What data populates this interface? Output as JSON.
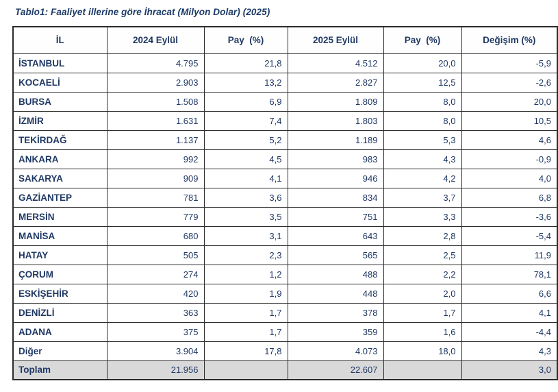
{
  "title": "Tablo1: Faaliyet illerine göre İhracat (Milyon Dolar) (2025)",
  "colors": {
    "text_navy": "#1f3864",
    "border": "#2b2b2b",
    "total_row_bg": "#d9d9d9",
    "background": "#ffffff"
  },
  "chart_data": {
    "type": "table",
    "title": "Tablo1: Faaliyet illerine göre İhracat (Milyon Dolar) (2025)",
    "unit": "Milyon Dolar",
    "columns": [
      "İL",
      "2024 Eylül",
      "Pay  (%)",
      "2025 Eylül",
      "Pay  (%)",
      "Değişim (%)"
    ],
    "rows": [
      [
        "İSTANBUL",
        "4.795",
        "21,8",
        "4.512",
        "20,0",
        "-5,9"
      ],
      [
        "KOCAELİ",
        "2.903",
        "13,2",
        "2.827",
        "12,5",
        "-2,6"
      ],
      [
        "BURSA",
        "1.508",
        "6,9",
        "1.809",
        "8,0",
        "20,0"
      ],
      [
        "İZMİR",
        "1.631",
        "7,4",
        "1.803",
        "8,0",
        "10,5"
      ],
      [
        "TEKİRDAĞ",
        "1.137",
        "5,2",
        "1.189",
        "5,3",
        "4,6"
      ],
      [
        "ANKARA",
        "992",
        "4,5",
        "983",
        "4,3",
        "-0,9"
      ],
      [
        "SAKARYA",
        "909",
        "4,1",
        "946",
        "4,2",
        "4,0"
      ],
      [
        "GAZİANTEP",
        "781",
        "3,6",
        "834",
        "3,7",
        "6,8"
      ],
      [
        "MERSİN",
        "779",
        "3,5",
        "751",
        "3,3",
        "-3,6"
      ],
      [
        "MANİSA",
        "680",
        "3,1",
        "643",
        "2,8",
        "-5,4"
      ],
      [
        "HATAY",
        "505",
        "2,3",
        "565",
        "2,5",
        "11,9"
      ],
      [
        "ÇORUM",
        "274",
        "1,2",
        "488",
        "2,2",
        "78,1"
      ],
      [
        "ESKİŞEHİR",
        "420",
        "1,9",
        "448",
        "2,0",
        "6,6"
      ],
      [
        "DENİZLİ",
        "363",
        "1,7",
        "378",
        "1,7",
        "4,1"
      ],
      [
        "ADANA",
        "375",
        "1,7",
        "359",
        "1,6",
        "-4,4"
      ],
      [
        "Diğer",
        "3.904",
        "17,8",
        "4.073",
        "18,0",
        "4,3"
      ]
    ],
    "total_row": [
      "Toplam",
      "21.956",
      "",
      "22.607",
      "",
      "3,0"
    ]
  }
}
